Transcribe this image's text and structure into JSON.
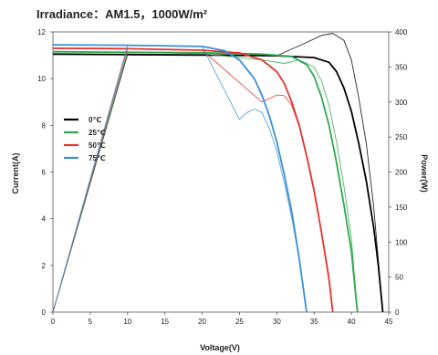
{
  "chart_data": {
    "type": "line",
    "title": "Irradiance：AM1.5，1000W/m²",
    "xlabel": "Voltage(V)",
    "ylabel": "Current(A)",
    "y2label": "Power(W)",
    "xlim": [
      0,
      45
    ],
    "ylim": [
      0,
      12
    ],
    "y2lim": [
      0,
      400
    ],
    "x_ticks": [
      "0",
      "5",
      "10",
      "15",
      "20",
      "25",
      "30",
      "35",
      "40",
      "45"
    ],
    "y_ticks": [
      "0",
      "2",
      "4",
      "6",
      "8",
      "10",
      "12"
    ],
    "y2_ticks": [
      "0",
      "50",
      "100",
      "150",
      "200",
      "250",
      "300",
      "350",
      "400"
    ],
    "grid": false,
    "legend_position": "left",
    "series": [
      {
        "name": "0℃",
        "color": "#000000",
        "iv": [
          [
            0,
            11.05
          ],
          [
            10,
            11.03
          ],
          [
            20,
            11.01
          ],
          [
            30,
            10.98
          ],
          [
            35,
            10.9
          ],
          [
            37,
            10.7
          ],
          [
            38,
            10.3
          ],
          [
            39,
            9.6
          ],
          [
            40,
            8.6
          ],
          [
            41,
            7.2
          ],
          [
            42,
            5.6
          ],
          [
            43,
            3.6
          ],
          [
            43.6,
            2.0
          ],
          [
            44.2,
            0
          ]
        ],
        "pv": [
          [
            0,
            0
          ],
          [
            10,
            368
          ],
          [
            20,
            367
          ],
          [
            30,
            366
          ],
          [
            34,
            385
          ],
          [
            36,
            395
          ],
          [
            37.5,
            398
          ],
          [
            39,
            388
          ],
          [
            40,
            360
          ],
          [
            41,
            305
          ],
          [
            42,
            240
          ],
          [
            43,
            150
          ],
          [
            44.2,
            0
          ]
        ]
      },
      {
        "name": "25℃",
        "color": "#2fa84f",
        "iv": [
          [
            0,
            11.15
          ],
          [
            10,
            11.13
          ],
          [
            20,
            11.11
          ],
          [
            28,
            11.05
          ],
          [
            32,
            10.95
          ],
          [
            34,
            10.6
          ],
          [
            35,
            10.1
          ],
          [
            36,
            9.2
          ],
          [
            37,
            8.0
          ],
          [
            38,
            6.4
          ],
          [
            39,
            4.6
          ],
          [
            40,
            2.6
          ],
          [
            40.8,
            0
          ]
        ],
        "pv": [
          [
            0,
            0
          ],
          [
            10,
            371
          ],
          [
            20,
            369
          ],
          [
            28,
            360
          ],
          [
            31,
            355
          ],
          [
            33,
            360
          ],
          [
            35,
            350
          ],
          [
            36,
            330
          ],
          [
            37,
            295
          ],
          [
            38,
            243
          ],
          [
            39,
            180
          ],
          [
            40,
            105
          ],
          [
            40.8,
            0
          ]
        ]
      },
      {
        "name": "50℃",
        "color": "#e6312c",
        "iv": [
          [
            0,
            11.3
          ],
          [
            10,
            11.28
          ],
          [
            20,
            11.22
          ],
          [
            25,
            11.1
          ],
          [
            28,
            10.8
          ],
          [
            30,
            10.3
          ],
          [
            31,
            9.8
          ],
          [
            32,
            9.0
          ],
          [
            33,
            8.0
          ],
          [
            34,
            6.7
          ],
          [
            35,
            5.2
          ],
          [
            36,
            3.4
          ],
          [
            37,
            1.4
          ],
          [
            37.5,
            0
          ]
        ],
        "pv": [
          [
            0,
            0
          ],
          [
            10,
            376
          ],
          [
            20,
            374
          ],
          [
            28,
            300
          ],
          [
            30,
            310
          ],
          [
            31,
            309
          ],
          [
            32,
            295
          ],
          [
            33,
            265
          ],
          [
            34,
            225
          ],
          [
            35,
            175
          ],
          [
            36,
            115
          ],
          [
            37,
            50
          ],
          [
            37.5,
            0
          ]
        ]
      },
      {
        "name": "75℃",
        "color": "#3a8fd8",
        "iv": [
          [
            0,
            11.45
          ],
          [
            10,
            11.43
          ],
          [
            20,
            11.38
          ],
          [
            23,
            11.2
          ],
          [
            25,
            10.8
          ],
          [
            27,
            10.0
          ],
          [
            28,
            9.3
          ],
          [
            29,
            8.4
          ],
          [
            30,
            7.3
          ],
          [
            31,
            5.9
          ],
          [
            32,
            4.3
          ],
          [
            33,
            2.3
          ],
          [
            34,
            0
          ]
        ],
        "pv": [
          [
            0,
            0
          ],
          [
            10,
            381
          ],
          [
            20,
            379
          ],
          [
            25,
            275
          ],
          [
            26,
            285
          ],
          [
            27,
            290
          ],
          [
            28,
            285
          ],
          [
            29,
            262
          ],
          [
            30,
            230
          ],
          [
            31,
            185
          ],
          [
            32,
            135
          ],
          [
            33,
            75
          ],
          [
            34,
            0
          ]
        ]
      }
    ]
  }
}
